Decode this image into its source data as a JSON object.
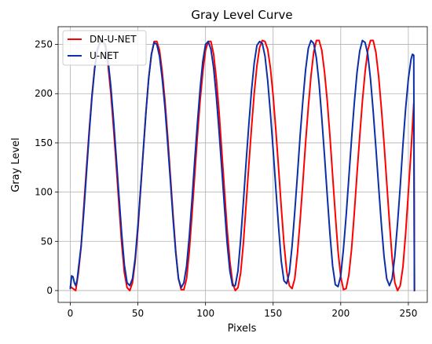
{
  "chart_data": {
    "type": "line",
    "title": "Gray Level Curve",
    "xlabel": "Pixels",
    "ylabel": "Gray Level",
    "xlim": [
      -9,
      264
    ],
    "ylim": [
      -12,
      268
    ],
    "xticks": [
      0,
      50,
      100,
      150,
      200,
      250
    ],
    "yticks": [
      0,
      50,
      100,
      150,
      200,
      250
    ],
    "grid": true,
    "legend_position": "top-left",
    "series": [
      {
        "name": "DN-U-NET",
        "color": "#ff0000",
        "x": [
          0,
          2,
          4,
          6,
          8,
          10,
          12,
          14,
          16,
          18,
          20,
          22,
          24,
          26,
          28,
          30,
          32,
          34,
          36,
          38,
          40,
          42,
          44,
          46,
          48,
          50,
          52,
          54,
          56,
          58,
          60,
          62,
          64,
          66,
          68,
          70,
          72,
          74,
          76,
          78,
          80,
          82,
          84,
          86,
          88,
          90,
          92,
          94,
          96,
          98,
          100,
          102,
          104,
          106,
          108,
          110,
          112,
          114,
          116,
          118,
          120,
          122,
          124,
          126,
          128,
          130,
          132,
          134,
          136,
          138,
          140,
          142,
          144,
          146,
          148,
          150,
          152,
          154,
          156,
          158,
          160,
          162,
          164,
          166,
          168,
          170,
          172,
          174,
          176,
          178,
          180,
          182,
          184,
          186,
          188,
          190,
          192,
          194,
          196,
          198,
          200,
          202,
          204,
          206,
          208,
          210,
          212,
          214,
          216,
          218,
          220,
          222,
          224,
          226,
          228,
          230,
          232,
          234,
          236,
          238,
          240,
          242,
          244,
          246,
          248,
          250,
          252,
          254,
          254.5
        ],
        "y": [
          4,
          2,
          0,
          18,
          45,
          85,
          125,
          163,
          198,
          226,
          245,
          253,
          254,
          247,
          228,
          200,
          165,
          127,
          87,
          48,
          18,
          3,
          0,
          8,
          30,
          62,
          102,
          142,
          182,
          216,
          240,
          253,
          253,
          244,
          222,
          193,
          157,
          117,
          77,
          40,
          12,
          1,
          1,
          12,
          40,
          77,
          117,
          157,
          193,
          222,
          244,
          253,
          253,
          240,
          215,
          182,
          142,
          102,
          62,
          30,
          8,
          0,
          3,
          18,
          48,
          87,
          127,
          165,
          200,
          228,
          247,
          254,
          253,
          245,
          226,
          198,
          163,
          125,
          85,
          48,
          20,
          5,
          2,
          12,
          38,
          72,
          110,
          150,
          186,
          218,
          242,
          254,
          254,
          244,
          222,
          193,
          157,
          117,
          77,
          40,
          14,
          1,
          2,
          16,
          42,
          78,
          118,
          156,
          192,
          222,
          244,
          254,
          254,
          242,
          218,
          186,
          150,
          110,
          70,
          33,
          8,
          0,
          5,
          24,
          58,
          100,
          142,
          190,
          0
        ]
      },
      {
        "name": "U-NET",
        "color": "#0b2fa8",
        "x": [
          0,
          1,
          2,
          3,
          4,
          5,
          6,
          8,
          10,
          12,
          14,
          16,
          18,
          20,
          22,
          24,
          26,
          28,
          30,
          32,
          34,
          36,
          38,
          40,
          42,
          44,
          46,
          48,
          50,
          52,
          54,
          56,
          58,
          60,
          62,
          64,
          66,
          68,
          70,
          72,
          74,
          76,
          78,
          80,
          82,
          84,
          86,
          88,
          90,
          92,
          94,
          96,
          98,
          100,
          102,
          104,
          106,
          108,
          110,
          112,
          114,
          116,
          118,
          120,
          122,
          124,
          126,
          128,
          130,
          132,
          134,
          136,
          138,
          140,
          142,
          144,
          146,
          148,
          150,
          152,
          154,
          156,
          158,
          160,
          162,
          164,
          166,
          168,
          170,
          172,
          174,
          176,
          178,
          180,
          182,
          184,
          186,
          188,
          190,
          192,
          194,
          196,
          198,
          200,
          202,
          204,
          206,
          208,
          210,
          212,
          214,
          216,
          218,
          220,
          222,
          224,
          226,
          228,
          230,
          232,
          234,
          236,
          238,
          240,
          242,
          244,
          246,
          248,
          250,
          252,
          253,
          254,
          254.5
        ],
        "y": [
          2,
          15,
          14,
          8,
          5,
          10,
          22,
          45,
          80,
          120,
          160,
          196,
          225,
          244,
          252,
          253,
          250,
          233,
          207,
          173,
          135,
          96,
          58,
          26,
          8,
          5,
          12,
          33,
          66,
          104,
          143,
          182,
          216,
          240,
          252,
          250,
          238,
          215,
          186,
          150,
          112,
          73,
          38,
          12,
          3,
          8,
          25,
          55,
          92,
          132,
          170,
          205,
          233,
          250,
          253,
          245,
          226,
          197,
          162,
          124,
          85,
          48,
          20,
          5,
          5,
          20,
          52,
          90,
          130,
          168,
          203,
          231,
          249,
          253,
          251,
          238,
          213,
          180,
          143,
          104,
          65,
          30,
          10,
          7,
          18,
          45,
          80,
          118,
          158,
          193,
          224,
          246,
          254,
          251,
          236,
          210,
          175,
          137,
          97,
          58,
          25,
          6,
          4,
          15,
          42,
          76,
          115,
          154,
          190,
          221,
          243,
          254,
          252,
          240,
          215,
          182,
          145,
          106,
          68,
          35,
          12,
          5,
          12,
          35,
          68,
          106,
          148,
          185,
          215,
          235,
          240,
          239,
          0
        ]
      }
    ]
  }
}
